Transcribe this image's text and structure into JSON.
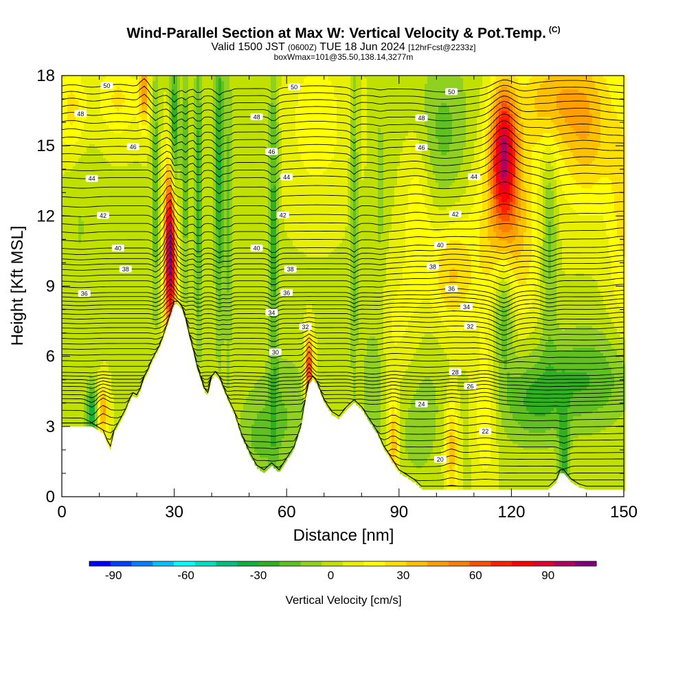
{
  "title": {
    "line1": "Wind-Parallel Section at Max W: Vertical Velocity & Pot.Temp.",
    "copyright": "(C)",
    "line2_main": "Valid 1500 JST",
    "line2_utc": "(0600Z)",
    "line2_date": "TUE 18 Jun 2024",
    "line2_run": "[12hrFcst@2233z]",
    "line3": "boxWmax=101@35.50,138.14,3277m"
  },
  "chart_data": {
    "type": "heatmap",
    "xlabel": "Distance [nm]",
    "ylabel": "Height [Kft MSL]",
    "xlim": [
      0,
      150
    ],
    "ylim": [
      0,
      18
    ],
    "x_ticks": [
      0,
      30,
      60,
      90,
      120,
      150
    ],
    "y_ticks": [
      0,
      3,
      6,
      9,
      12,
      15,
      18
    ],
    "colorbar": {
      "label": "Vertical Velocity [cm/s]",
      "ticks": [
        -90,
        -60,
        -30,
        0,
        30,
        60,
        90
      ],
      "range": [
        -100,
        110
      ],
      "colors": [
        "#0000ff",
        "#0040ff",
        "#0080ff",
        "#00c0ff",
        "#00ffff",
        "#00e0c0",
        "#00c080",
        "#10b040",
        "#30b020",
        "#60c020",
        "#90d020",
        "#c0e000",
        "#e8f000",
        "#ffff00",
        "#ffe000",
        "#ffc000",
        "#ffa000",
        "#ff8000",
        "#ff5000",
        "#ff2000",
        "#ff0000",
        "#e00030",
        "#b00060",
        "#800080"
      ]
    },
    "terrain_kft": {
      "x": [
        0,
        5,
        8,
        10,
        11,
        12,
        13,
        14,
        15,
        16,
        17,
        18,
        19,
        20,
        21,
        22,
        23,
        24,
        25,
        26,
        27,
        28,
        29,
        30,
        31,
        32,
        33,
        34,
        35,
        36,
        37,
        38,
        39,
        40,
        41,
        42,
        44,
        46,
        48,
        50,
        52,
        54,
        56,
        58,
        60,
        62,
        64,
        65,
        66,
        67,
        68,
        70,
        72,
        74,
        76,
        78,
        80,
        82,
        84,
        86,
        88,
        90,
        92,
        94,
        96,
        100,
        110,
        120,
        130,
        132,
        133,
        134,
        135,
        136,
        138,
        140,
        150
      ],
      "y": [
        3.0,
        3.0,
        3.0,
        2.8,
        2.7,
        2.3,
        2.0,
        2.7,
        3.0,
        3.3,
        3.6,
        4.0,
        4.3,
        4.2,
        4.5,
        5.0,
        5.3,
        5.7,
        6.0,
        6.3,
        6.7,
        7.2,
        7.7,
        8.2,
        8.2,
        8.0,
        7.5,
        6.8,
        6.2,
        5.5,
        5.0,
        4.5,
        4.3,
        5.0,
        5.2,
        5.0,
        4.2,
        3.5,
        2.5,
        1.8,
        1.2,
        1.0,
        1.3,
        1.0,
        1.5,
        2.0,
        3.0,
        4.0,
        4.8,
        5.0,
        4.8,
        4.0,
        3.5,
        3.3,
        3.7,
        4.0,
        3.7,
        3.2,
        2.7,
        2.0,
        1.5,
        1.0,
        0.8,
        0.6,
        0.3,
        0.3,
        0.3,
        0.3,
        0.3,
        0.6,
        1.0,
        1.0,
        0.8,
        0.6,
        0.4,
        0.3,
        0.3
      ]
    },
    "theta_contours": {
      "labels_C": [
        50,
        48,
        46,
        44,
        42,
        40,
        38,
        36,
        34,
        32,
        30,
        28,
        26,
        24,
        22,
        20
      ],
      "labeled_heights_kft": [
        17.4,
        16.2,
        14.9,
        13.6,
        12.0,
        10.6,
        9.7,
        8.7,
        8.0,
        7.2,
        6.3,
        5.3,
        4.7,
        4.0,
        2.7,
        1.6
      ]
    },
    "w_features": [
      {
        "x": 29,
        "z": 10.5,
        "sx": 1.1,
        "sz": 2.5,
        "w": 110
      },
      {
        "x": 30,
        "z": 15.0,
        "sx": 0.8,
        "sz": 3.0,
        "w": -40
      },
      {
        "x": 25,
        "z": 13.0,
        "sx": 0.7,
        "sz": 4.0,
        "w": -25
      },
      {
        "x": 33,
        "z": 14.0,
        "sx": 0.7,
        "sz": 4.0,
        "w": -25
      },
      {
        "x": 36.5,
        "z": 13.0,
        "sx": 0.7,
        "sz": 5.0,
        "w": -30
      },
      {
        "x": 42,
        "z": 14.0,
        "sx": 0.9,
        "sz": 5.0,
        "w": -35
      },
      {
        "x": 44.5,
        "z": 12.0,
        "sx": 0.7,
        "sz": 5.0,
        "w": -20
      },
      {
        "x": 56.5,
        "z": 11.5,
        "sx": 0.9,
        "sz": 6.0,
        "w": -30
      },
      {
        "x": 66,
        "z": 5.5,
        "sx": 0.8,
        "sz": 1.0,
        "w": 70
      },
      {
        "x": 78,
        "z": 12.0,
        "sx": 0.7,
        "sz": 5.0,
        "w": -25
      },
      {
        "x": 85,
        "z": 13.0,
        "sx": 1.0,
        "sz": 4.0,
        "w": -10
      },
      {
        "x": 22,
        "z": 17.5,
        "sx": 1.0,
        "sz": 1.2,
        "w": 40
      },
      {
        "x": 11,
        "z": 3.7,
        "sx": 1.0,
        "sz": 0.8,
        "w": 40
      },
      {
        "x": 8,
        "z": 3.6,
        "sx": 1.0,
        "sz": 0.8,
        "w": -40
      },
      {
        "x": 118,
        "z": 14.8,
        "sx": 2.5,
        "sz": 2.0,
        "w": 75
      },
      {
        "x": 119,
        "z": 11.5,
        "sx": 6.0,
        "sz": 3.0,
        "w": 35
      },
      {
        "x": 118,
        "z": 8.0,
        "sx": 2.0,
        "sz": 1.8,
        "w": -35
      },
      {
        "x": 104,
        "z": 9.5,
        "sx": 4.0,
        "sz": 1.8,
        "w": 28
      },
      {
        "x": 101,
        "z": 15.5,
        "sx": 6.0,
        "sz": 2.5,
        "w": -20
      },
      {
        "x": 140,
        "z": 16.0,
        "sx": 5.0,
        "sz": 2.5,
        "w": 35
      },
      {
        "x": 130,
        "z": 17.0,
        "sx": 5.0,
        "sz": 1.5,
        "w": 30
      },
      {
        "x": 130,
        "z": 11.0,
        "sx": 1.5,
        "sz": 3.0,
        "w": -25
      },
      {
        "x": 140,
        "z": 5.0,
        "sx": 10.0,
        "sz": 1.5,
        "w": -25
      },
      {
        "x": 125,
        "z": 4.0,
        "sx": 6.0,
        "sz": 1.3,
        "w": -22
      },
      {
        "x": 113,
        "z": 3.5,
        "sx": 2.0,
        "sz": 2.0,
        "w": 20
      },
      {
        "x": 104,
        "z": 2.0,
        "sx": 1.3,
        "sz": 1.5,
        "w": 35
      },
      {
        "x": 90,
        "z": 7.0,
        "sx": 4.0,
        "sz": 2.0,
        "w": 15
      },
      {
        "x": 95,
        "z": 4.0,
        "sx": 6.0,
        "sz": 3.0,
        "w": -12
      },
      {
        "x": 83,
        "z": 5.0,
        "sx": 2.0,
        "sz": 2.0,
        "w": -15
      },
      {
        "x": 88.5,
        "z": 2.2,
        "sx": 1.0,
        "sz": 1.5,
        "w": 40
      },
      {
        "x": 134,
        "z": 1.5,
        "sx": 1.0,
        "sz": 1.5,
        "w": -30
      },
      {
        "x": 60,
        "z": 3.5,
        "sx": 5.0,
        "sz": 2.0,
        "w": -15
      },
      {
        "x": 52,
        "z": 2.5,
        "sx": 4.0,
        "sz": 1.5,
        "w": -15
      },
      {
        "x": 5,
        "z": 12.0,
        "sx": 3.0,
        "sz": 5.0,
        "w": -8
      },
      {
        "x": 15,
        "z": 17.0,
        "sx": 4.0,
        "sz": 1.2,
        "w": 20
      },
      {
        "x": 3,
        "z": 16.5,
        "sx": 3.0,
        "sz": 1.5,
        "w": 25
      },
      {
        "x": 68,
        "z": 16.0,
        "sx": 6.0,
        "sz": 2.5,
        "w": 15
      },
      {
        "x": 95,
        "z": 12.5,
        "sx": 3.0,
        "sz": 3.0,
        "w": 20
      },
      {
        "x": 150,
        "z": 12.0,
        "sx": 3.0,
        "sz": 4.0,
        "w": 20
      }
    ]
  }
}
